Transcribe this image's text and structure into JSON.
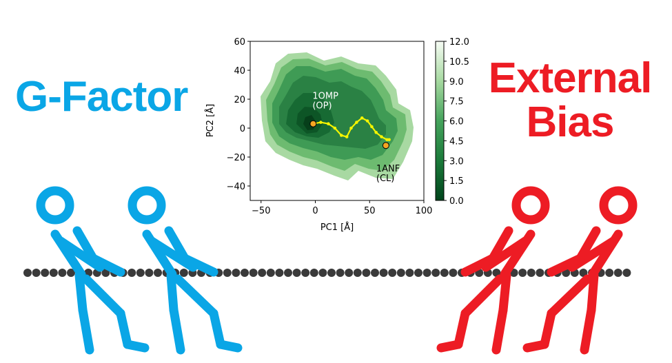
{
  "left_label": "G-Factor",
  "right_label_line1": "External",
  "right_label_line2": "Bias",
  "colors": {
    "left_team": "#0aa6e6",
    "right_team": "#ed1c24",
    "rope": "#3a3a3a",
    "path": "#f5f500",
    "marker": "#f5a623"
  },
  "chart_data": {
    "type": "heatmap",
    "xlabel": "PC1 [Å]",
    "ylabel": "PC2 [Å]",
    "xlim": [
      -60,
      100
    ],
    "ylim": [
      -50,
      60
    ],
    "xticks": [
      "−50",
      "0",
      "50",
      "100"
    ],
    "yticks": [
      "60",
      "40",
      "20",
      "0",
      "−20",
      "−40"
    ],
    "colorbar_ticks": [
      "12.0",
      "10.5",
      "9.0",
      "7.5",
      "6.0",
      "4.5",
      "3.0",
      "1.5",
      "0.0"
    ],
    "colorbar_range": [
      0,
      12
    ],
    "colormap": "Greens_r",
    "annotations": [
      {
        "text_line1": "1OMP",
        "text_line2": "(OP)",
        "x": -2,
        "y": 3
      },
      {
        "text_line1": "1ANF",
        "text_line2": "(CL)",
        "x": 65,
        "y": -12
      }
    ],
    "path": [
      {
        "x": -2,
        "y": 3
      },
      {
        "x": 5,
        "y": 4
      },
      {
        "x": 12,
        "y": 3
      },
      {
        "x": 18,
        "y": 0
      },
      {
        "x": 24,
        "y": -5
      },
      {
        "x": 29,
        "y": -6
      },
      {
        "x": 33,
        "y": 0
      },
      {
        "x": 38,
        "y": 4
      },
      {
        "x": 43,
        "y": 7
      },
      {
        "x": 48,
        "y": 5
      },
      {
        "x": 52,
        "y": 1
      },
      {
        "x": 56,
        "y": -3
      },
      {
        "x": 61,
        "y": -6
      },
      {
        "x": 66,
        "y": -8
      },
      {
        "x": 68,
        "y": -8
      }
    ]
  }
}
